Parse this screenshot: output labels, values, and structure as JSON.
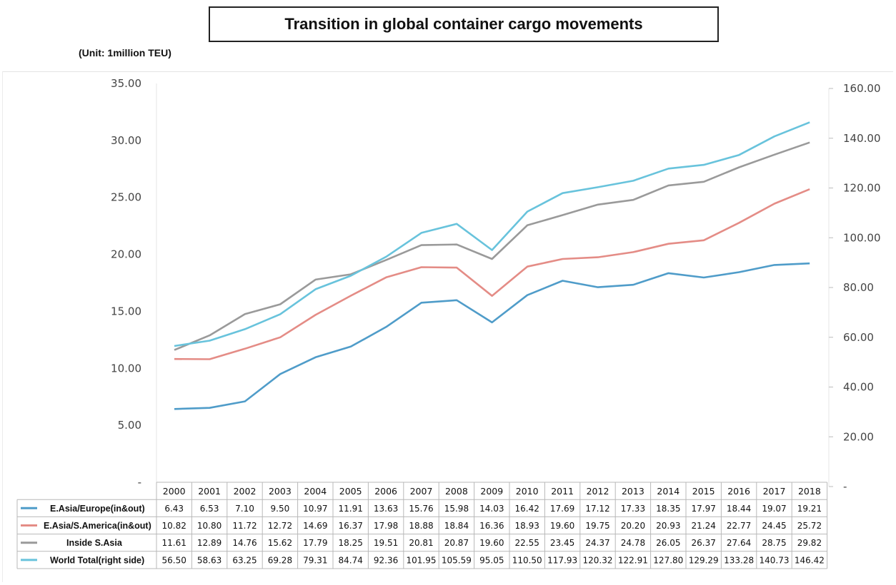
{
  "header": {
    "title": "Transition in global container cargo movements",
    "unit": "(Unit: 1million TEU)"
  },
  "chart_data": {
    "type": "line",
    "categories": [
      "2000",
      "2001",
      "2002",
      "2003",
      "2004",
      "2005",
      "2006",
      "2007",
      "2008",
      "2009",
      "2010",
      "2011",
      "2012",
      "2013",
      "2014",
      "2015",
      "2016",
      "2017",
      "2018"
    ],
    "y_left": {
      "ylim": [
        0,
        35
      ],
      "tick_labels": [
        "-",
        "5.00",
        "10.00",
        "15.00",
        "20.00",
        "25.00",
        "30.00",
        "35.00"
      ]
    },
    "y_right": {
      "ylim": [
        0,
        160
      ],
      "tick_labels": [
        "-",
        "20.00",
        "40.00",
        "60.00",
        "80.00",
        "100.00",
        "120.00",
        "140.00",
        "160.00"
      ]
    },
    "series": [
      {
        "name": "E.Asia/Europe(in&out)",
        "axis": "left",
        "color": "#4f9cc9",
        "values": [
          6.43,
          6.53,
          7.1,
          9.5,
          10.97,
          11.91,
          13.63,
          15.76,
          15.98,
          14.03,
          16.42,
          17.69,
          17.12,
          17.33,
          18.35,
          17.97,
          18.44,
          19.07,
          19.21
        ],
        "labels": [
          "6.43",
          "6.53",
          "7.10",
          "9.50",
          "10.97",
          "11.91",
          "13.63",
          "15.76",
          "15.98",
          "14.03",
          "16.42",
          "17.69",
          "17.12",
          "17.33",
          "18.35",
          "17.97",
          "18.44",
          "19.07",
          "19.21"
        ]
      },
      {
        "name": "E.Asia/S.America(in&out)",
        "axis": "left",
        "color": "#e48c86",
        "values": [
          10.82,
          10.8,
          11.72,
          12.72,
          14.69,
          16.37,
          17.98,
          18.88,
          18.84,
          16.36,
          18.93,
          19.6,
          19.75,
          20.2,
          20.93,
          21.24,
          22.77,
          24.45,
          25.72
        ],
        "labels": [
          "10.82",
          "10.80",
          "11.72",
          "12.72",
          "14.69",
          "16.37",
          "17.98",
          "18.88",
          "18.84",
          "16.36",
          "18.93",
          "19.60",
          "19.75",
          "20.20",
          "20.93",
          "21.24",
          "22.77",
          "24.45",
          "25.72"
        ]
      },
      {
        "name": "Inside S.Asia",
        "axis": "left",
        "color": "#9a9a9a",
        "values": [
          11.61,
          12.89,
          14.76,
          15.62,
          17.79,
          18.25,
          19.51,
          20.81,
          20.87,
          19.6,
          22.55,
          23.45,
          24.37,
          24.78,
          26.05,
          26.37,
          27.64,
          28.75,
          29.82
        ],
        "labels": [
          "11.61",
          "12.89",
          "14.76",
          "15.62",
          "17.79",
          "18.25",
          "19.51",
          "20.81",
          "20.87",
          "19.60",
          "22.55",
          "23.45",
          "24.37",
          "24.78",
          "26.05",
          "26.37",
          "27.64",
          "28.75",
          "29.82"
        ]
      },
      {
        "name": "World Total(right side)",
        "axis": "right",
        "color": "#68c3dc",
        "values": [
          56.5,
          58.63,
          63.25,
          69.28,
          79.31,
          84.74,
          92.36,
          101.95,
          105.59,
          95.05,
          110.5,
          117.93,
          120.32,
          122.91,
          127.8,
          129.29,
          133.28,
          140.73,
          146.42
        ],
        "labels": [
          "56.50",
          "58.63",
          "63.25",
          "69.28",
          "79.31",
          "84.74",
          "92.36",
          "101.95",
          "105.59",
          "95.05",
          "110.50",
          "117.93",
          "120.32",
          "122.91",
          "127.80",
          "129.29",
          "133.28",
          "140.73",
          "146.42"
        ]
      }
    ],
    "grid": false,
    "legend": "bottom-left data table"
  }
}
